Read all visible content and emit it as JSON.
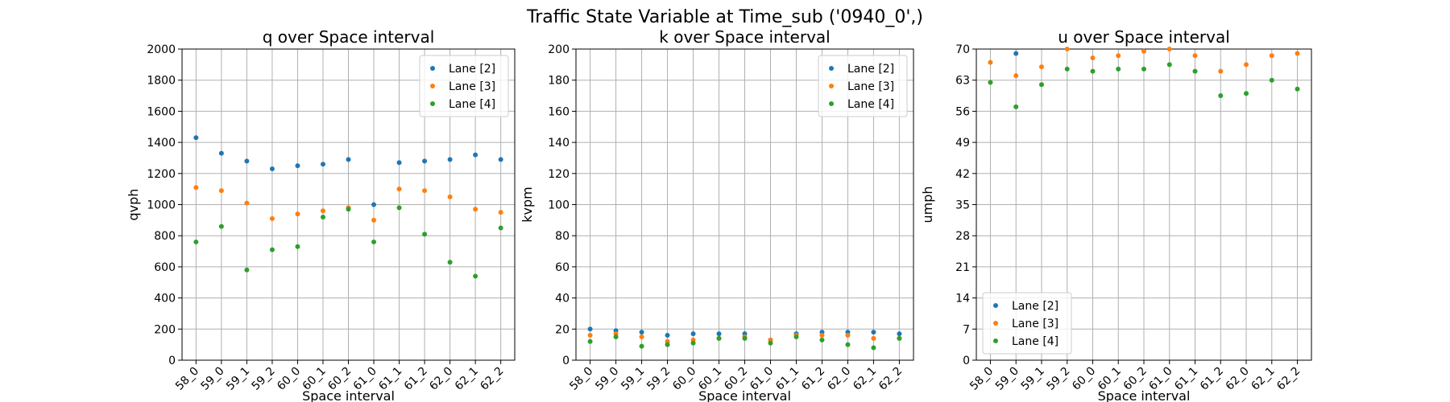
{
  "title": "Traffic State Variable at Time_sub ('0940_0',)",
  "chart_data": [
    {
      "type": "scatter",
      "title": "q over Space interval",
      "x_label": "Space interval",
      "y_label": "qvph",
      "categories": [
        "58_0",
        "59_0",
        "59_1",
        "59_2",
        "60_0",
        "60_1",
        "60_2",
        "61_0",
        "61_1",
        "61_2",
        "62_0",
        "62_1",
        "62_2"
      ],
      "series": [
        {
          "name": "Lane [2]",
          "color": "#1f77b4",
          "values": [
            1430,
            1330,
            1280,
            1230,
            1250,
            1260,
            1290,
            1000,
            1270,
            1280,
            1290,
            1320,
            1290
          ]
        },
        {
          "name": "Lane [3]",
          "color": "#ff7f0e",
          "values": [
            1110,
            1090,
            1010,
            910,
            940,
            960,
            980,
            900,
            1100,
            1090,
            1050,
            970,
            950
          ]
        },
        {
          "name": "Lane [4]",
          "color": "#2ca02c",
          "values": [
            760,
            860,
            580,
            710,
            730,
            920,
            970,
            760,
            980,
            810,
            630,
            540,
            850
          ]
        }
      ],
      "ylim": [
        0,
        2000
      ],
      "yticks": [
        0,
        200,
        400,
        600,
        800,
        1000,
        1200,
        1400,
        1600,
        1800,
        2000
      ],
      "grid": true,
      "legend": "upper right"
    },
    {
      "type": "scatter",
      "title": "k over Space interval",
      "x_label": "Space interval",
      "y_label": "kvpm",
      "categories": [
        "58_0",
        "59_0",
        "59_1",
        "59_2",
        "60_0",
        "60_1",
        "60_2",
        "61_0",
        "61_1",
        "61_2",
        "62_0",
        "62_1",
        "62_2"
      ],
      "series": [
        {
          "name": "Lane [2]",
          "color": "#1f77b4",
          "values": [
            20,
            19,
            18,
            16,
            17,
            17,
            17,
            13,
            17,
            18,
            18,
            18,
            17
          ]
        },
        {
          "name": "Lane [3]",
          "color": "#ff7f0e",
          "values": [
            16,
            17,
            15,
            12,
            13,
            14,
            15,
            13,
            16,
            16,
            16,
            14,
            14
          ]
        },
        {
          "name": "Lane [4]",
          "color": "#2ca02c",
          "values": [
            12,
            15,
            9,
            10,
            11,
            14,
            14,
            11,
            15,
            13,
            10,
            8,
            14
          ]
        }
      ],
      "ylim": [
        0,
        200
      ],
      "yticks": [
        0,
        20,
        40,
        60,
        80,
        100,
        120,
        140,
        160,
        180,
        200
      ],
      "grid": true,
      "legend": "upper right"
    },
    {
      "type": "scatter",
      "title": "u over Space interval",
      "x_label": "Space interval",
      "y_label": "umph",
      "categories": [
        "58_0",
        "59_0",
        "59_1",
        "59_2",
        "60_0",
        "60_1",
        "60_2",
        "61_0",
        "61_1",
        "61_2",
        "62_0",
        "62_1",
        "62_2"
      ],
      "series": [
        {
          "name": "Lane [2]",
          "color": "#1f77b4",
          "values": [
            null,
            69,
            null,
            null,
            null,
            null,
            null,
            null,
            null,
            null,
            null,
            null,
            null
          ]
        },
        {
          "name": "Lane [3]",
          "color": "#ff7f0e",
          "values": [
            67,
            64,
            66,
            70,
            68,
            68.5,
            69.5,
            70,
            68.5,
            65,
            66.5,
            68.5,
            69
          ]
        },
        {
          "name": "Lane [4]",
          "color": "#2ca02c",
          "values": [
            62.5,
            57,
            62,
            65.5,
            65,
            65.5,
            65.5,
            66.5,
            65,
            59.5,
            60,
            63,
            61
          ]
        }
      ],
      "ylim": [
        0,
        70
      ],
      "yticks": [
        0,
        7,
        14,
        21,
        28,
        35,
        42,
        49,
        56,
        63,
        70
      ],
      "grid": true,
      "legend": "lower left"
    }
  ]
}
